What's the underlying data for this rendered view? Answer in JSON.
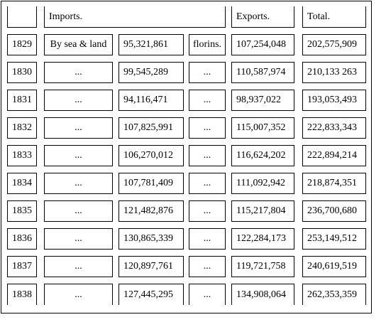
{
  "header": {
    "imports_label": "Imports.",
    "exports_label": "Exports.",
    "total_label": "Total."
  },
  "rows": [
    {
      "year": "1829",
      "mode": "By sea & land",
      "imports": "95,321,861",
      "unit": "florins.",
      "exports": "107,254,048",
      "total": "202,575,909"
    },
    {
      "year": "1830",
      "mode": "...",
      "imports": "99,545,289",
      "unit": "...",
      "exports": "110,587,974",
      "total": "210,133 263"
    },
    {
      "year": "1831",
      "mode": "...",
      "imports": "94,116,471",
      "unit": "...",
      "exports": "98,937,022",
      "total": "193,053,493"
    },
    {
      "year": "1832",
      "mode": "...",
      "imports": "107,825,991",
      "unit": "...",
      "exports": "115,007,352",
      "total": "222,833,343"
    },
    {
      "year": "1833",
      "mode": "...",
      "imports": "106,270,012",
      "unit": "...",
      "exports": "116,624,202",
      "total": "222,894,214"
    },
    {
      "year": "1834",
      "mode": "...",
      "imports": "107,781,409",
      "unit": "...",
      "exports": "111,092,942",
      "total": "218,874,351"
    },
    {
      "year": "1835",
      "mode": "...",
      "imports": "121,482,876",
      "unit": "...",
      "exports": "115,217,804",
      "total": "236,700,680"
    },
    {
      "year": "1836",
      "mode": "...",
      "imports": "130,865,339",
      "unit": "...",
      "exports": "122,284,173",
      "total": "253,149,512"
    },
    {
      "year": "1837",
      "mode": "...",
      "imports": "120,897,761",
      "unit": "...",
      "exports": "119,721,758",
      "total": "240,619,519"
    },
    {
      "year": "1838",
      "mode": "...",
      "imports": "127,445,295",
      "unit": "...",
      "exports": "134,908,064",
      "total": "262,353,359"
    }
  ]
}
